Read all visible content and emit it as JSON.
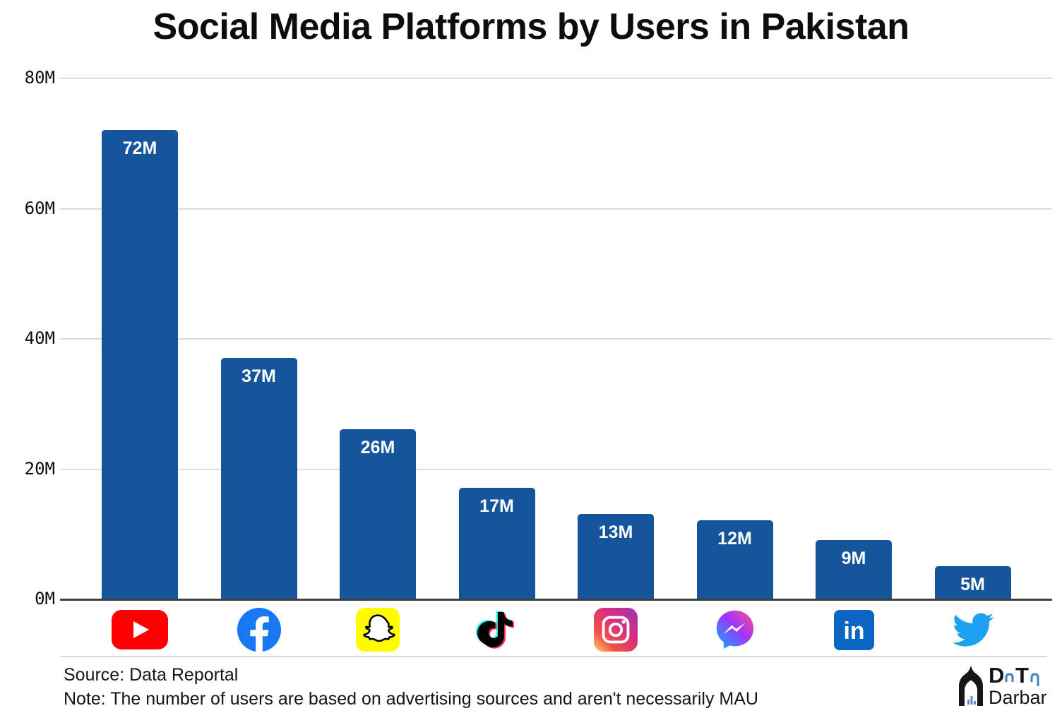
{
  "title": "Social Media Platforms by Users in Pakistan",
  "chart_data": {
    "type": "bar",
    "title": "Social Media Platforms by Users in Pakistan",
    "categories": [
      "YouTube",
      "Facebook",
      "Snapchat",
      "TikTok",
      "Instagram",
      "Messenger",
      "LinkedIn",
      "Twitter"
    ],
    "values": [
      72,
      37,
      26,
      17,
      13,
      12,
      9,
      5
    ],
    "bar_labels": [
      "72M",
      "37M",
      "26M",
      "17M",
      "13M",
      "12M",
      "9M",
      "5M"
    ],
    "unit": "M users",
    "y_ticks": [
      {
        "value": 0,
        "label": "0M"
      },
      {
        "value": 20,
        "label": "20M"
      },
      {
        "value": 40,
        "label": "40M"
      },
      {
        "value": 60,
        "label": "60M"
      },
      {
        "value": 80,
        "label": "80M"
      }
    ],
    "ylim": [
      0,
      80
    ],
    "grid": true,
    "legend": "none",
    "bar_color": "#15559B"
  },
  "colors": {
    "bar": "#15559B",
    "axis": "#3f3f3f",
    "gridline": "#dcdcdc",
    "title_text": "#0d0d0d",
    "bar_label_text": "#ffffff",
    "youtube": "#FF0000",
    "facebook": "#1877F2",
    "snapchat": "#FFFC00",
    "tiktok_black": "#010101",
    "tiktok_cyan": "#25F4EE",
    "tiktok_pink": "#FE2C55",
    "linkedin": "#0A66C2",
    "twitter": "#1DA1F2"
  },
  "footer": {
    "source": "Source: Data Reportal",
    "note": "Note: The number of users are based on advertising sources and aren't necessarily MAU"
  },
  "logo": {
    "letter_d": "D",
    "letter_t": "T",
    "wordmark": "Darbar"
  }
}
